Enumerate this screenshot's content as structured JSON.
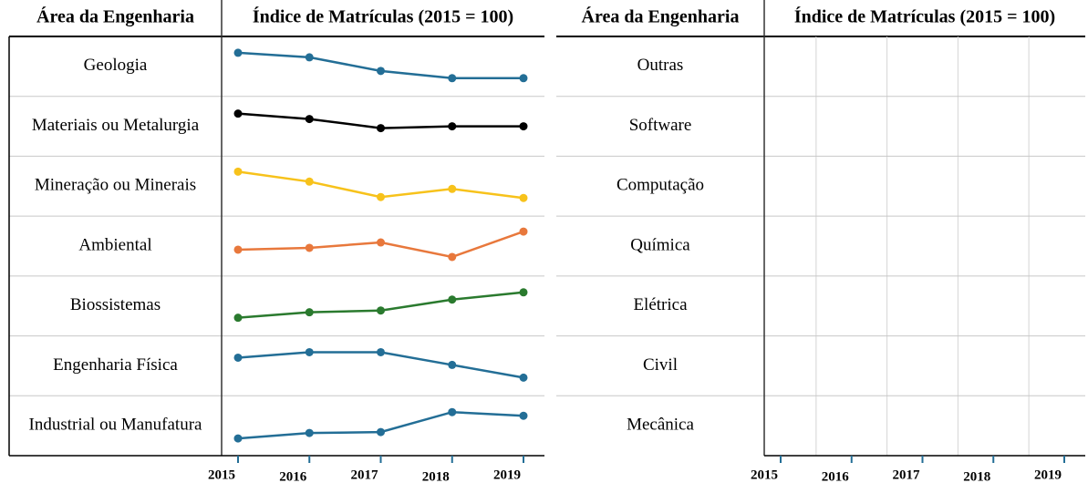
{
  "chart_data": [
    {
      "type": "line",
      "headers": [
        "Área da Engenharia",
        "Índice de Matrículas (2015 = 100)"
      ],
      "x": [
        2015,
        2016,
        2017,
        2018,
        2019
      ],
      "series": [
        {
          "name": "Geologia",
          "color": "#236e96",
          "values": [
            100,
            95,
            80,
            72,
            72
          ],
          "ylim": [
            52,
            118
          ]
        },
        {
          "name": "Materiais ou Metalurgia",
          "color": "#000000",
          "values": [
            100,
            94,
            84,
            86,
            86
          ],
          "ylim": [
            53,
            119
          ]
        },
        {
          "name": "Mineração ou Minerais",
          "color": "#f7c21b",
          "values": [
            100,
            89,
            72,
            81,
            71
          ],
          "ylim": [
            51,
            117
          ]
        },
        {
          "name": "Ambiental",
          "color": "#e8783c",
          "values": [
            100,
            102,
            108,
            92,
            120
          ],
          "ylim": [
            71,
            137
          ]
        },
        {
          "name": "Biossistemas",
          "color": "#2a7a2e",
          "values": [
            100,
            106,
            108,
            120,
            128
          ],
          "ylim": [
            80,
            146
          ]
        },
        {
          "name": "Engenharia Física",
          "color": "#236e96",
          "values": [
            100,
            106,
            106,
            92,
            78
          ],
          "ylim": [
            58,
            124
          ]
        },
        {
          "name": "Industrial ou Manufatura",
          "color": "#236e96",
          "values": [
            100,
            106,
            107,
            129,
            125
          ],
          "ylim": [
            81,
            147
          ]
        }
      ]
    },
    {
      "type": "empty",
      "headers": [
        "Área da Engenharia",
        "Índice de Matrículas (2015 = 100)"
      ],
      "x": [
        2015,
        2016,
        2017,
        2018,
        2019
      ],
      "rows": [
        "Outras",
        "Software",
        "Computação",
        "Química",
        "Elétrica",
        "Civil",
        "Mecânica"
      ]
    }
  ]
}
